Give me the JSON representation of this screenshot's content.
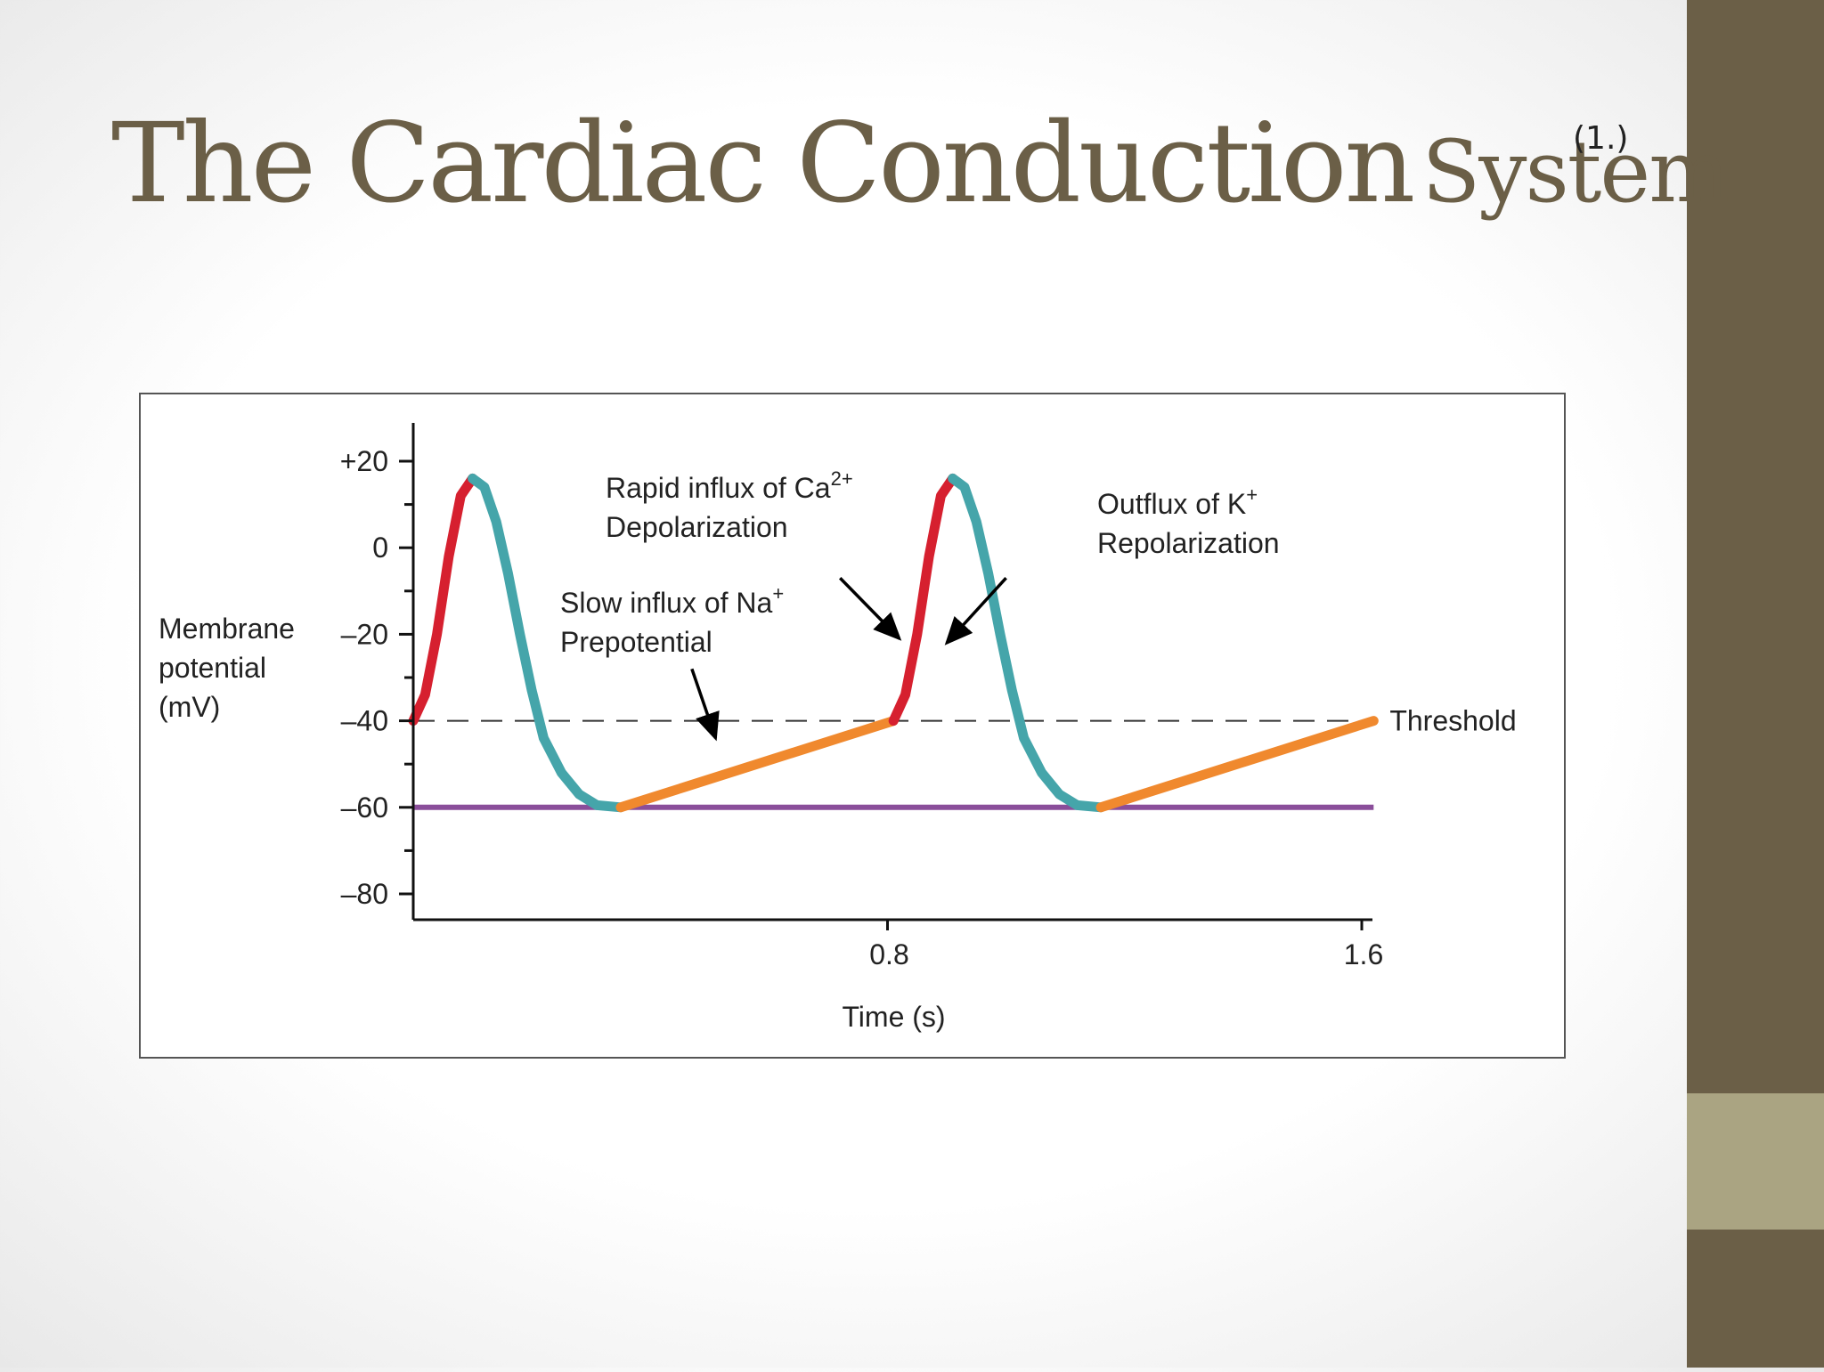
{
  "slide": {
    "title_main": "The Cardiac Conduction",
    "title_sub": "System",
    "number_text": "(1.)",
    "colors": {
      "band": "#6b5f47",
      "band_accent": "#aaa482",
      "title": "#6b5f47"
    }
  },
  "chart_data": {
    "type": "line",
    "title": "",
    "xlabel": "Time (s)",
    "ylabel_lines": [
      "Membrane",
      "potential",
      "(mV)"
    ],
    "xlim": [
      0,
      1.6
    ],
    "ylim": [
      -90,
      30
    ],
    "xticks": [
      {
        "value": 0.8,
        "label": "0.8"
      },
      {
        "value": 1.6,
        "label": "1.6"
      }
    ],
    "yticks": [
      {
        "value": 20,
        "label": "+20"
      },
      {
        "value": 0,
        "label": "0"
      },
      {
        "value": -20,
        "label": "–20"
      },
      {
        "value": -40,
        "label": "–40"
      },
      {
        "value": -60,
        "label": "–60"
      },
      {
        "value": -80,
        "label": "–80"
      }
    ],
    "threshold": {
      "value": -40,
      "label": "Threshold"
    },
    "resting_line": {
      "value": -60,
      "color": "#8a4e9a"
    },
    "series": [
      {
        "phase": "depolarization",
        "color": "#d6202f",
        "points": [
          [
            0,
            -40
          ],
          [
            0.02,
            -34
          ],
          [
            0.04,
            -20
          ],
          [
            0.06,
            -2
          ],
          [
            0.08,
            12
          ],
          [
            0.1,
            16
          ]
        ]
      },
      {
        "phase": "repolarization",
        "color": "#45a5aa",
        "points": [
          [
            0.1,
            16
          ],
          [
            0.12,
            14
          ],
          [
            0.14,
            6
          ],
          [
            0.16,
            -6
          ],
          [
            0.18,
            -20
          ],
          [
            0.2,
            -33
          ],
          [
            0.22,
            -44
          ],
          [
            0.25,
            -52
          ],
          [
            0.28,
            -57
          ],
          [
            0.31,
            -59.5
          ],
          [
            0.35,
            -60
          ]
        ]
      },
      {
        "phase": "prepotential",
        "color": "#f0892e",
        "points": [
          [
            0.35,
            -60
          ],
          [
            0.81,
            -40
          ]
        ]
      },
      {
        "phase": "depolarization",
        "color": "#d6202f",
        "points": [
          [
            0.81,
            -40
          ],
          [
            0.83,
            -34
          ],
          [
            0.85,
            -20
          ],
          [
            0.87,
            -2
          ],
          [
            0.89,
            12
          ],
          [
            0.91,
            16
          ]
        ]
      },
      {
        "phase": "repolarization",
        "color": "#45a5aa",
        "points": [
          [
            0.91,
            16
          ],
          [
            0.93,
            14
          ],
          [
            0.95,
            6
          ],
          [
            0.97,
            -6
          ],
          [
            0.99,
            -20
          ],
          [
            1.01,
            -33
          ],
          [
            1.03,
            -44
          ],
          [
            1.06,
            -52
          ],
          [
            1.09,
            -57
          ],
          [
            1.12,
            -59.5
          ],
          [
            1.16,
            -60
          ]
        ]
      },
      {
        "phase": "prepotential",
        "color": "#f0892e",
        "points": [
          [
            1.16,
            -60
          ],
          [
            1.62,
            -40
          ]
        ]
      }
    ],
    "annotations": [
      {
        "id": "na",
        "lines": [
          "Slow influx of Na",
          "Prepotential"
        ],
        "sup": "+",
        "arrow_from": [
          0.47,
          -28
        ],
        "arrow_to": [
          0.51,
          -44
        ]
      },
      {
        "id": "ca",
        "lines": [
          "Rapid influx of Ca",
          "Depolarization"
        ],
        "sup": "2+",
        "arrow_from": [
          0.72,
          -7
        ],
        "arrow_to": [
          0.82,
          -21
        ]
      },
      {
        "id": "k",
        "lines": [
          "Outflux of K",
          "Repolarization"
        ],
        "sup": "+",
        "arrow_from": [
          1.0,
          -7
        ],
        "arrow_to": [
          0.9,
          -22
        ]
      }
    ]
  }
}
